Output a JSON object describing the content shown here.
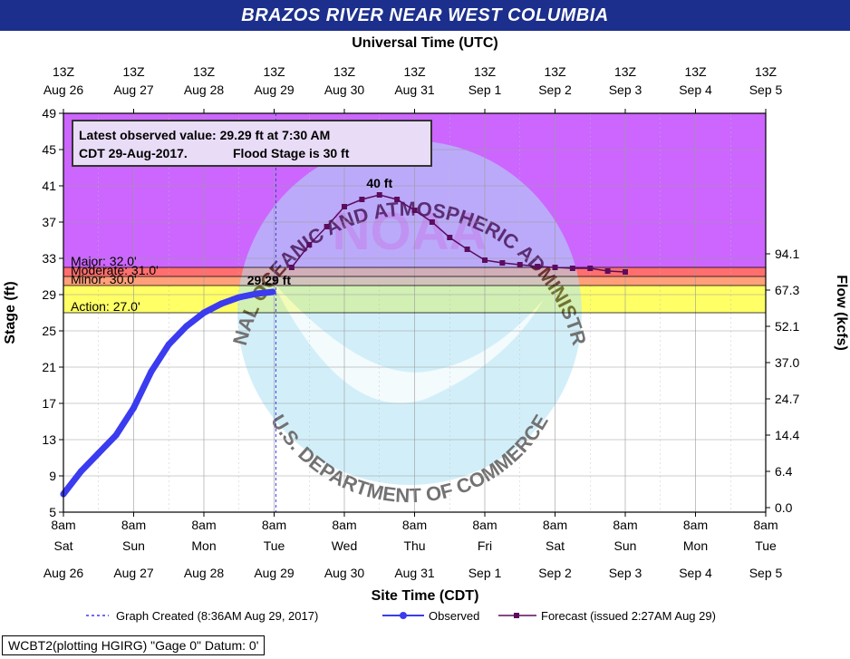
{
  "title": "BRAZOS RIVER NEAR WEST COLUMBIA",
  "top_axis_title": "Universal Time (UTC)",
  "top_ticks": [
    {
      "l1": "13Z",
      "l2": "Aug 26"
    },
    {
      "l1": "13Z",
      "l2": "Aug 27"
    },
    {
      "l1": "13Z",
      "l2": "Aug 28"
    },
    {
      "l1": "13Z",
      "l2": "Aug 29"
    },
    {
      "l1": "13Z",
      "l2": "Aug 30"
    },
    {
      "l1": "13Z",
      "l2": "Aug 31"
    },
    {
      "l1": "13Z",
      "l2": "Sep 1"
    },
    {
      "l1": "13Z",
      "l2": "Sep 2"
    },
    {
      "l1": "13Z",
      "l2": "Sep 3"
    },
    {
      "l1": "13Z",
      "l2": "Sep 4"
    },
    {
      "l1": "13Z",
      "l2": "Sep 5"
    }
  ],
  "bottom_ticks": [
    {
      "l1": "8am",
      "l2": "Sat",
      "l3": "Aug 26"
    },
    {
      "l1": "8am",
      "l2": "Sun",
      "l3": "Aug 27"
    },
    {
      "l1": "8am",
      "l2": "Mon",
      "l3": "Aug 28"
    },
    {
      "l1": "8am",
      "l2": "Tue",
      "l3": "Aug 29"
    },
    {
      "l1": "8am",
      "l2": "Wed",
      "l3": "Aug 30"
    },
    {
      "l1": "8am",
      "l2": "Thu",
      "l3": "Aug 31"
    },
    {
      "l1": "8am",
      "l2": "Fri",
      "l3": "Sep 1"
    },
    {
      "l1": "8am",
      "l2": "Sat",
      "l3": "Sep 2"
    },
    {
      "l1": "8am",
      "l2": "Sun",
      "l3": "Sep 3"
    },
    {
      "l1": "8am",
      "l2": "Mon",
      "l3": "Sep 4"
    },
    {
      "l1": "8am",
      "l2": "Tue",
      "l3": "Sep 5"
    }
  ],
  "bottom_axis_title": "Site Time (CDT)",
  "left_axis_title": "Stage (ft)",
  "right_axis_title": "Flow (kcfs)",
  "left_ticks": [
    "49",
    "45",
    "41",
    "37",
    "33",
    "29",
    "25",
    "21",
    "17",
    "13",
    "9",
    "5"
  ],
  "right_ticks": [
    {
      "stage": 33.5,
      "label": "94.1"
    },
    {
      "stage": 29.5,
      "label": "67.3"
    },
    {
      "stage": 25.5,
      "label": "52.1"
    },
    {
      "stage": 21.5,
      "label": "37.0"
    },
    {
      "stage": 17.5,
      "label": "24.7"
    },
    {
      "stage": 13.5,
      "label": "14.4"
    },
    {
      "stage": 9.5,
      "label": "6.4"
    },
    {
      "stage": 5.5,
      "label": "0.0"
    }
  ],
  "thresholds": [
    {
      "label": "Major: 32.0'",
      "value": 32.0,
      "color": "#cc66ff"
    },
    {
      "label": "Moderate: 31.0'",
      "value": 31.0,
      "color": "#ff6f6f"
    },
    {
      "label": "Minor: 30.0'",
      "value": 30.0,
      "color": "#ffa07a"
    },
    {
      "label": "Action: 27.0'",
      "value": 27.0,
      "color": "#ffff66"
    }
  ],
  "info_box": {
    "line1": "Latest observed value: 29.29 ft at 7:30 AM",
    "line2a": "CDT 29-Aug-2017.",
    "line2b": "Flood Stage is 30 ft"
  },
  "crest_label": "40 ft",
  "latest_label": "29.29 ft",
  "legend": {
    "created": "Graph Created (8:36AM Aug 29, 2017)",
    "observed": "Observed",
    "forecast": "Forecast (issued 2:27AM Aug 29)"
  },
  "footer": "WCBT2(plotting HGIRG) \"Gage 0\" Datum: 0'",
  "watermark": {
    "top": "NATIONAL OCEANIC AND ATMOSPHERIC ADMINISTRATION",
    "bottom": "U.S. DEPARTMENT OF COMMERCE",
    "center": "NOAA"
  },
  "colors": {
    "observed": "#3b3bef",
    "forecast": "#5b0c5e",
    "title_bg": "#1c2f8c",
    "info_text": "#3b3bef"
  },
  "chart_data": {
    "type": "line",
    "title": "BRAZOS RIVER NEAR WEST COLUMBIA",
    "xlabel": "Site Time (CDT)",
    "ylabel": "Stage (ft)",
    "y2label": "Flow (kcfs)",
    "ylim": [
      5,
      49
    ],
    "xlim_days": [
      "2017-08-26 08:00",
      "2017-09-05 08:00"
    ],
    "series": [
      {
        "name": "Observed",
        "x": [
          "08-26 08:00",
          "08-26 14:00",
          "08-26 20:00",
          "08-27 02:00",
          "08-27 08:00",
          "08-27 14:00",
          "08-27 20:00",
          "08-28 02:00",
          "08-28 08:00",
          "08-28 14:00",
          "08-28 20:00",
          "08-29 02:00",
          "08-29 07:30"
        ],
        "values": [
          7.0,
          9.5,
          11.5,
          13.5,
          16.5,
          20.5,
          23.5,
          25.5,
          27.0,
          28.0,
          28.7,
          29.1,
          29.29
        ]
      },
      {
        "name": "Forecast (issued 2:27AM Aug 29)",
        "x": [
          "08-29 14:00",
          "08-29 20:00",
          "08-30 02:00",
          "08-30 08:00",
          "08-30 14:00",
          "08-30 20:00",
          "08-31 02:00",
          "08-31 08:00",
          "08-31 14:00",
          "08-31 20:00",
          "09-01 02:00",
          "09-01 08:00",
          "09-01 14:00",
          "09-01 20:00",
          "09-02 02:00",
          "09-02 08:00",
          "09-02 14:00",
          "09-02 20:00",
          "09-03 02:00",
          "09-03 08:00"
        ],
        "values": [
          32.0,
          34.5,
          36.5,
          38.7,
          39.5,
          40.0,
          39.5,
          38.3,
          37.0,
          35.3,
          34.0,
          32.8,
          32.5,
          32.3,
          32.1,
          32.0,
          31.9,
          31.9,
          31.6,
          31.5
        ]
      }
    ],
    "annotations": [
      "40 ft",
      "29.29 ft"
    ]
  }
}
